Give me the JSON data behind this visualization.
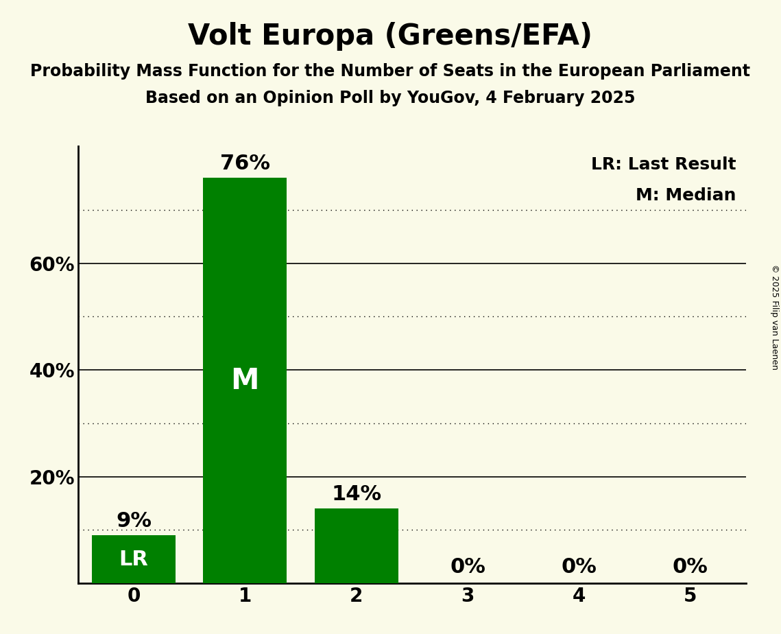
{
  "title": "Volt Europa (Greens/EFA)",
  "subtitle1": "Probability Mass Function for the Number of Seats in the European Parliament",
  "subtitle2": "Based on an Opinion Poll by YouGov, 4 February 2025",
  "categories": [
    0,
    1,
    2,
    3,
    4,
    5
  ],
  "values": [
    9,
    76,
    14,
    0,
    0,
    0
  ],
  "bar_color": "#008000",
  "background_color": "#FAFAE8",
  "label_lr": "LR",
  "label_m": "M",
  "lr_bar_index": 0,
  "m_bar_index": 1,
  "legend_text": [
    "LR: Last Result",
    "M: Median"
  ],
  "copyright": "© 2025 Filip van Laenen",
  "ylim": [
    0,
    82
  ],
  "yticks_solid": [
    20,
    40,
    60
  ],
  "yticks_dotted": [
    10,
    30,
    50,
    70
  ],
  "title_fontsize": 30,
  "subtitle_fontsize": 17,
  "tick_fontsize": 20,
  "bar_label_fontsize": 22,
  "inner_label_fontsize_lr": 22,
  "inner_label_fontsize_m": 30,
  "legend_fontsize": 18,
  "copyright_fontsize": 9,
  "bar_width": 0.75
}
